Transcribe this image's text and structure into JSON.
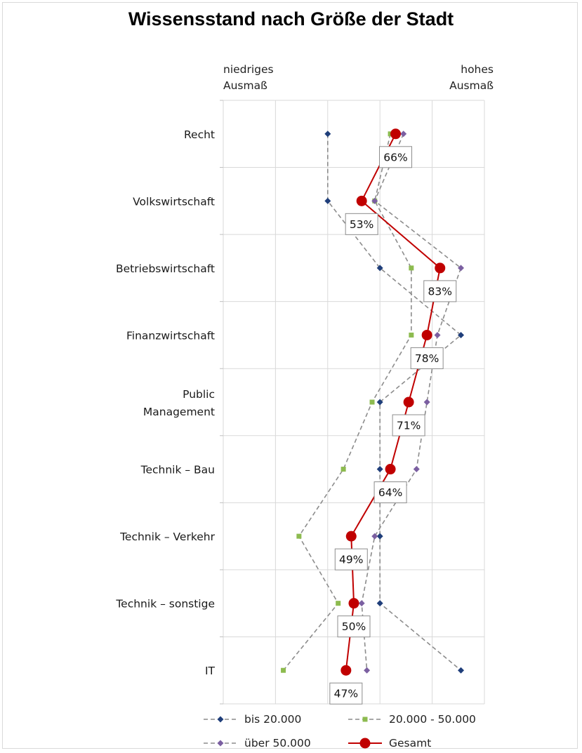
{
  "chart_data": {
    "type": "line",
    "title": "Wissensstand nach Größe der Stadt",
    "scale_low_label": "niedriges\nAusmaß",
    "scale_high_label": "hohes\nAusmaß",
    "categories": [
      "Recht",
      "Volkswirtschaft",
      "Betriebswirtschaft",
      "Finanzwirtschaft",
      "Public\nManagement",
      "Technik – Bau",
      "Technik – Verkehr",
      "Technik – sonstige",
      "IT"
    ],
    "xlim": [
      0,
      100
    ],
    "grid": true,
    "legend_position": "bottom",
    "series": [
      {
        "name": "bis 20.000",
        "color": "#1f3e7a",
        "marker": "diamond",
        "style": "dashed",
        "values": [
          40,
          40,
          60,
          91,
          60,
          60,
          60,
          60,
          91
        ]
      },
      {
        "name": "20.000 - 50.000",
        "color": "#8dbb4f",
        "marker": "square",
        "style": "dashed",
        "values": [
          64,
          58,
          72,
          72,
          57,
          46,
          29,
          44,
          23
        ]
      },
      {
        "name": "über 50.000",
        "color": "#7b5fa1",
        "marker": "diamond",
        "style": "dashed",
        "values": [
          69,
          58,
          91,
          82,
          78,
          74,
          58,
          53,
          55
        ]
      },
      {
        "name": "Gesamt",
        "color": "#c00000",
        "marker": "circle",
        "style": "solid",
        "values": [
          66,
          53,
          83,
          78,
          71,
          64,
          49,
          50,
          47
        ]
      }
    ],
    "data_labels": [
      "66%",
      "53%",
      "83%",
      "78%",
      "71%",
      "64%",
      "49%",
      "50%",
      "47%"
    ]
  }
}
